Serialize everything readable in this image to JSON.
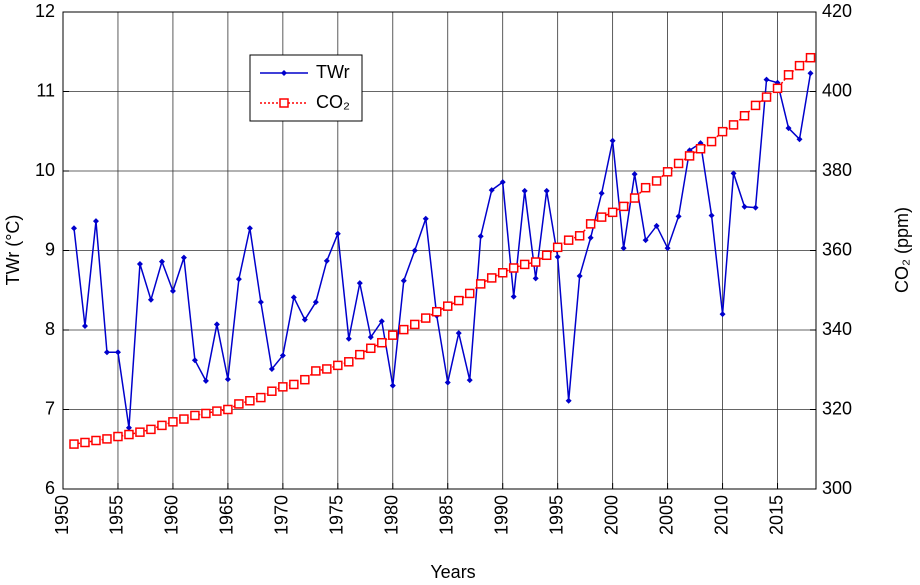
{
  "chart_data": {
    "type": "line",
    "x_label": "Years",
    "y_label": "TWr (°C)",
    "y2_label": "CO₂ (ppm)",
    "x": [
      1951,
      1952,
      1953,
      1954,
      1955,
      1956,
      1957,
      1958,
      1959,
      1960,
      1961,
      1962,
      1963,
      1964,
      1965,
      1966,
      1967,
      1968,
      1969,
      1970,
      1971,
      1972,
      1973,
      1974,
      1975,
      1976,
      1977,
      1978,
      1979,
      1980,
      1981,
      1982,
      1983,
      1984,
      1985,
      1986,
      1987,
      1988,
      1989,
      1990,
      1991,
      1992,
      1993,
      1994,
      1995,
      1996,
      1997,
      1998,
      1999,
      2000,
      2001,
      2002,
      2003,
      2004,
      2005,
      2006,
      2007,
      2008,
      2009,
      2010,
      2011,
      2012,
      2013,
      2014,
      2015,
      2016,
      2017,
      2018
    ],
    "series": [
      {
        "name": "TWr",
        "color": "#0000cc",
        "values": [
          9.28,
          8.05,
          9.37,
          7.72,
          7.72,
          6.77,
          8.83,
          8.38,
          8.86,
          8.49,
          8.91,
          7.62,
          7.36,
          8.07,
          7.38,
          8.64,
          9.28,
          8.35,
          7.51,
          7.68,
          8.41,
          8.13,
          8.35,
          8.87,
          9.21,
          7.89,
          8.59,
          7.91,
          8.11,
          7.3,
          8.62,
          9.0,
          9.4,
          8.18,
          7.34,
          7.96,
          7.37,
          9.18,
          9.76,
          9.86,
          8.42,
          9.75,
          8.65,
          9.75,
          8.92,
          7.11,
          8.68,
          9.16,
          9.72,
          10.38,
          9.03,
          9.96,
          9.13,
          9.31,
          9.03,
          9.43,
          10.26,
          10.35,
          9.44,
          8.2,
          9.97,
          9.55,
          9.54,
          11.15,
          11.11,
          10.54,
          10.4,
          11.23
        ]
      },
      {
        "name": "CO₂",
        "color": "#ff0000",
        "axis": "y2",
        "values": [
          311.3,
          311.7,
          312.2,
          312.6,
          313.2,
          313.7,
          314.3,
          315.0,
          316.0,
          316.9,
          317.6,
          318.5,
          319.0,
          319.6,
          320.0,
          321.4,
          322.2,
          323.0,
          324.6,
          325.7,
          326.3,
          327.5,
          329.7,
          330.2,
          331.1,
          332.0,
          333.8,
          335.4,
          336.8,
          338.7,
          340.1,
          341.4,
          343.0,
          344.6,
          346.0,
          347.4,
          349.2,
          351.6,
          353.1,
          354.4,
          355.6,
          356.5,
          357.1,
          358.8,
          360.8,
          362.6,
          363.7,
          366.7,
          368.4,
          369.6,
          371.1,
          373.2,
          375.8,
          377.5,
          379.8,
          381.9,
          383.8,
          385.6,
          387.4,
          389.9,
          391.6,
          393.9,
          396.5,
          398.6,
          400.8,
          404.2,
          406.5,
          408.5
        ]
      }
    ],
    "xlim": [
      1950,
      2018.5
    ],
    "xticks": [
      1950,
      1955,
      1960,
      1965,
      1970,
      1975,
      1980,
      1985,
      1990,
      1995,
      2000,
      2005,
      2010,
      2015
    ],
    "ylim": [
      6,
      12
    ],
    "yticks": [
      6,
      7,
      8,
      9,
      10,
      11,
      12
    ],
    "y2lim": [
      300,
      420
    ],
    "y2ticks": [
      300,
      320,
      340,
      360,
      380,
      400,
      420
    ],
    "grid": true,
    "legend": "upper-left"
  }
}
